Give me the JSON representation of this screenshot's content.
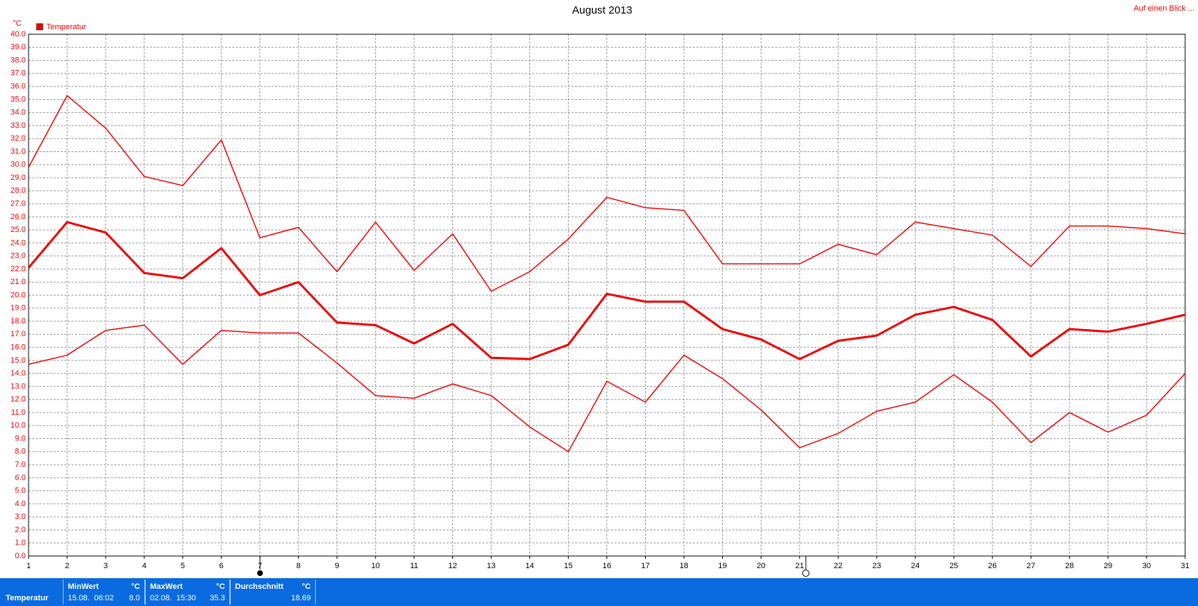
{
  "chart_data": {
    "type": "line",
    "title": "August 2013",
    "unit_label": "°C",
    "legend": "Temperatur",
    "legend_color": "#ee0000",
    "x": [
      1,
      2,
      3,
      4,
      5,
      6,
      7,
      8,
      9,
      10,
      11,
      12,
      13,
      14,
      15,
      16,
      17,
      18,
      19,
      20,
      21,
      22,
      23,
      24,
      25,
      26,
      27,
      28,
      29,
      30,
      31
    ],
    "xlim": [
      1,
      31
    ],
    "xticks": [
      1,
      2,
      3,
      4,
      5,
      6,
      7,
      8,
      9,
      10,
      11,
      12,
      13,
      14,
      15,
      16,
      17,
      18,
      19,
      20,
      21,
      22,
      23,
      24,
      25,
      26,
      27,
      28,
      29,
      30,
      31
    ],
    "ylim": [
      0,
      40
    ],
    "yticks": [
      {
        "value": 0,
        "label": "0.0"
      },
      {
        "value": 1,
        "label": "1.0"
      },
      {
        "value": 2,
        "label": "2.0"
      },
      {
        "value": 3,
        "label": "3.0"
      },
      {
        "value": 4,
        "label": "4.0"
      },
      {
        "value": 5,
        "label": "5.0"
      },
      {
        "value": 6,
        "label": "6.0"
      },
      {
        "value": 7,
        "label": "7.0"
      },
      {
        "value": 8,
        "label": "8.0"
      },
      {
        "value": 9,
        "label": "9.0"
      },
      {
        "value": 10,
        "label": "10.0"
      },
      {
        "value": 11,
        "label": "11.0"
      },
      {
        "value": 12,
        "label": "12.0"
      },
      {
        "value": 13,
        "label": "13.0"
      },
      {
        "value": 14,
        "label": "14.0"
      },
      {
        "value": 15,
        "label": "15.0"
      },
      {
        "value": 16,
        "label": "16.0"
      },
      {
        "value": 17,
        "label": "17.0"
      },
      {
        "value": 18,
        "label": "18.0"
      },
      {
        "value": 19,
        "label": "19.0"
      },
      {
        "value": 20,
        "label": "20.0"
      },
      {
        "value": 21,
        "label": "21.0"
      },
      {
        "value": 22,
        "label": "22.0"
      },
      {
        "value": 23,
        "label": "23.0"
      },
      {
        "value": 24,
        "label": "24.0"
      },
      {
        "value": 25,
        "label": "25.0"
      },
      {
        "value": 26,
        "label": "26.0"
      },
      {
        "value": 27,
        "label": "27.0"
      },
      {
        "value": 28,
        "label": "28.0"
      },
      {
        "value": 29,
        "label": "29.0"
      },
      {
        "value": 30,
        "label": "30.0"
      },
      {
        "value": 31,
        "label": "31.0"
      },
      {
        "value": 32,
        "label": "32.0"
      },
      {
        "value": 33,
        "label": "33.0"
      },
      {
        "value": 34,
        "label": "34.0"
      },
      {
        "value": 35,
        "label": "35.0"
      },
      {
        "value": 36,
        "label": "36.0"
      },
      {
        "value": 37,
        "label": "37.0"
      },
      {
        "value": 38,
        "label": "38.0"
      },
      {
        "value": 39,
        "label": "39.0"
      },
      {
        "value": 40,
        "label": "40.0"
      }
    ],
    "grid": true,
    "series": [
      {
        "color": "#ee0000",
        "width": 1.5,
        "values": [
          29.8,
          35.3,
          32.8,
          29.1,
          28.4,
          31.9,
          24.4,
          25.2,
          21.8,
          25.6,
          21.9,
          24.7,
          20.3,
          21.8,
          24.3,
          27.5,
          26.7,
          26.5,
          22.4,
          22.4,
          22.4,
          23.9,
          23.1,
          25.6,
          25.1,
          24.6,
          22.2,
          25.3,
          25.3,
          25.1,
          24.7
        ]
      },
      {
        "color": "#ee0000",
        "width": 3,
        "values": [
          22.1,
          25.6,
          24.8,
          21.7,
          21.3,
          23.6,
          20.0,
          21.0,
          17.9,
          17.7,
          16.3,
          17.8,
          15.2,
          15.1,
          16.2,
          20.1,
          19.5,
          19.5,
          17.4,
          16.6,
          15.1,
          16.5,
          16.9,
          18.5,
          19.1,
          18.1,
          15.3,
          17.4,
          17.2,
          17.8,
          18.5
        ]
      },
      {
        "color": "#ee0000",
        "width": 1.5,
        "values": [
          14.7,
          15.4,
          17.3,
          17.7,
          14.7,
          17.3,
          17.1,
          17.1,
          14.8,
          12.3,
          12.1,
          13.2,
          12.3,
          9.9,
          8.0,
          13.4,
          11.8,
          15.4,
          13.6,
          11.2,
          8.3,
          9.4,
          11.1,
          11.8,
          13.9,
          11.8,
          8.7,
          11.0,
          9.5,
          10.8,
          14.0
        ]
      }
    ]
  },
  "link": "Auf einen Blick ...",
  "summary": {
    "name": "Temperatur",
    "min": {
      "title": "MinWert",
      "unit": "°C",
      "time": "15.08.  06:02",
      "value": "8.0"
    },
    "max": {
      "title": "MaxWert",
      "unit": "°C",
      "time": "02.08.  15:30",
      "value": "35.3"
    },
    "avg": {
      "title": "Durchschnitt",
      "unit": "°C",
      "value": "18.69"
    }
  }
}
